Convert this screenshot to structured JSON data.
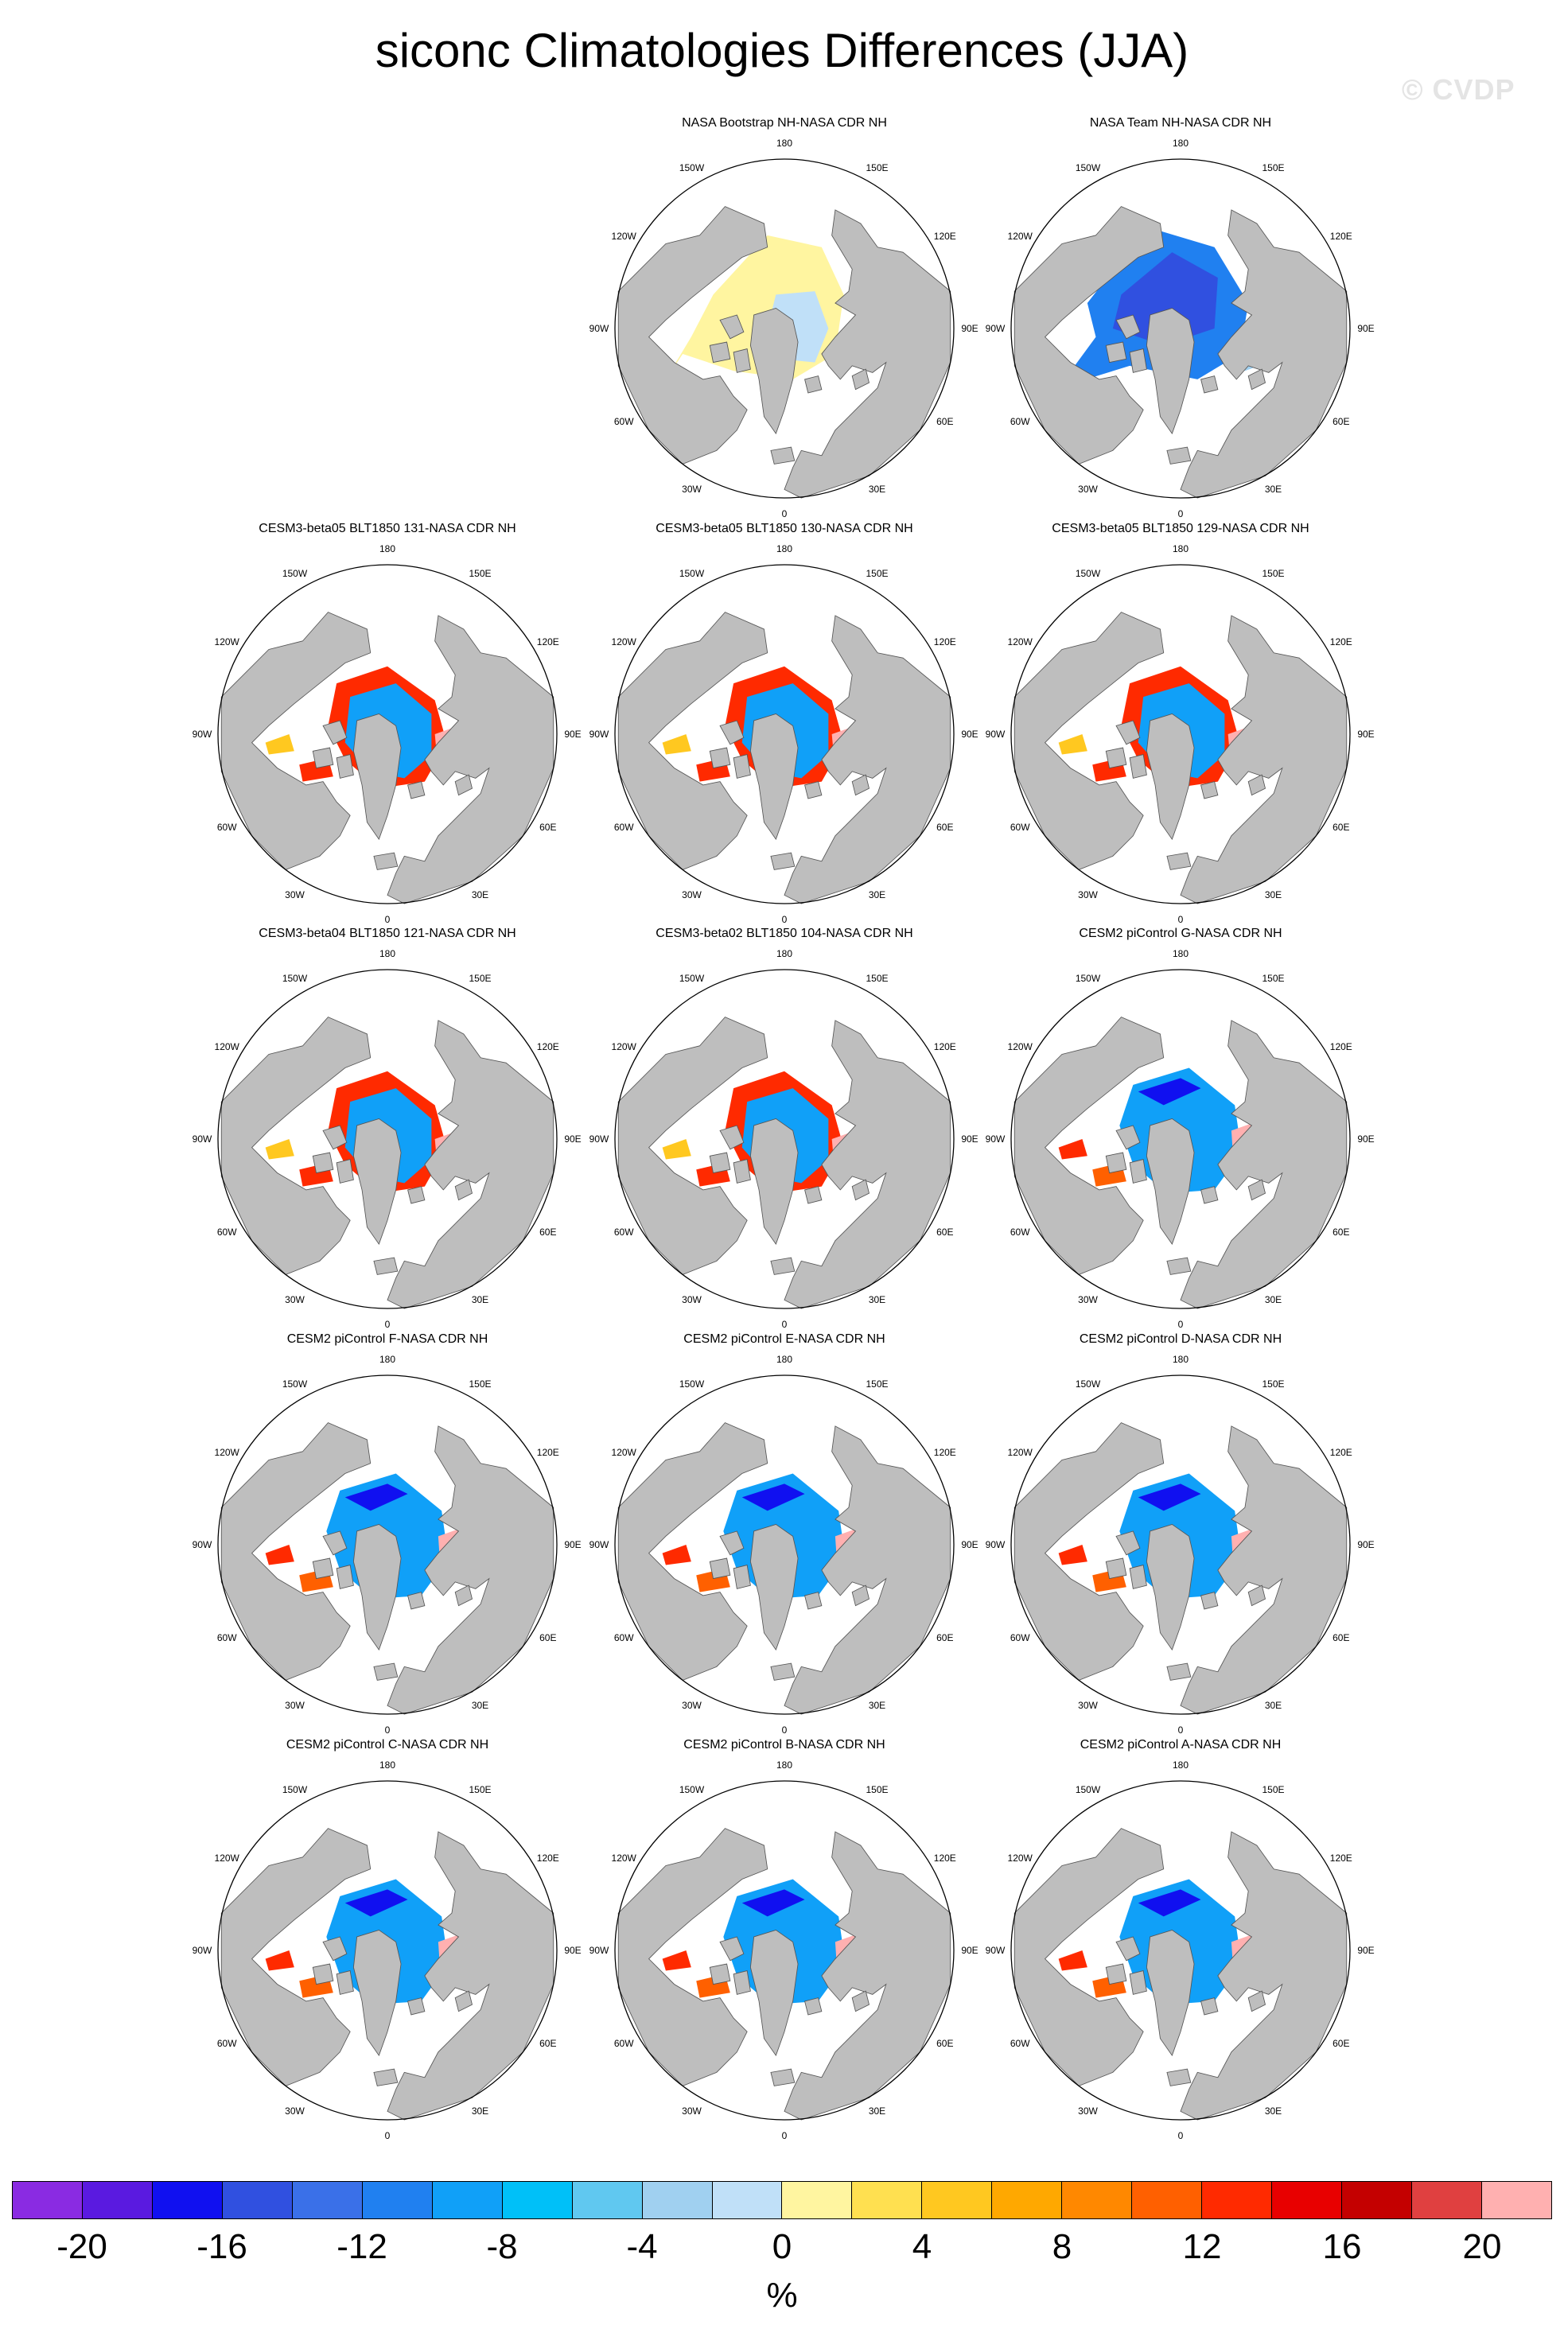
{
  "title": "siconc Climatologies Differences (JJA)",
  "watermark": "© CVDP",
  "lon_labels": [
    "180",
    "150E",
    "120E",
    "90E",
    "60E",
    "30E",
    "0",
    "30W",
    "60W",
    "90W",
    "120W",
    "150W"
  ],
  "panels": [
    {
      "title": "NASA Bootstrap NH-NASA CDR NH",
      "pattern": "bootstrap"
    },
    {
      "title": "NASA Team NH-NASA CDR NH",
      "pattern": "team"
    },
    {
      "title": "CESM3-beta05 BLT1850 131-NASA CDR NH",
      "pattern": "cesm3"
    },
    {
      "title": "CESM3-beta05 BLT1850 130-NASA CDR NH",
      "pattern": "cesm3"
    },
    {
      "title": "CESM3-beta05 BLT1850 129-NASA CDR NH",
      "pattern": "cesm3"
    },
    {
      "title": "CESM3-beta04 BLT1850 121-NASA CDR NH",
      "pattern": "cesm3"
    },
    {
      "title": "CESM3-beta02 BLT1850 104-NASA CDR NH",
      "pattern": "cesm3"
    },
    {
      "title": "CESM2 piControl G-NASA CDR NH",
      "pattern": "cesm2"
    },
    {
      "title": "CESM2 piControl F-NASA CDR NH",
      "pattern": "cesm2"
    },
    {
      "title": "CESM2 piControl E-NASA CDR NH",
      "pattern": "cesm2"
    },
    {
      "title": "CESM2 piControl D-NASA CDR NH",
      "pattern": "cesm2"
    },
    {
      "title": "CESM2 piControl C-NASA CDR NH",
      "pattern": "cesm2"
    },
    {
      "title": "CESM2 piControl B-NASA CDR NH",
      "pattern": "cesm2"
    },
    {
      "title": "CESM2 piControl A-NASA CDR NH",
      "pattern": "cesm2"
    }
  ],
  "colorbar": {
    "colors": [
      "#8a2be2",
      "#5a1ae0",
      "#1010f0",
      "#3050e0",
      "#3a70e8",
      "#2080f0",
      "#10a0f8",
      "#00c0f8",
      "#60c8f0",
      "#a0d0f0",
      "#c0e0f8",
      "#fff5a0",
      "#ffe050",
      "#ffc820",
      "#ffa800",
      "#ff8800",
      "#ff6000",
      "#ff2a00",
      "#e80000",
      "#c40000",
      "#e04040",
      "#ffb0b0"
    ],
    "tick_labels": [
      "-20",
      "-16",
      "-12",
      "-8",
      "-4",
      "0",
      "4",
      "8",
      "12",
      "16",
      "20"
    ],
    "units": "%"
  },
  "colors": {
    "land": "#bebebe",
    "ocean": "#ffffff",
    "outline": "#000000"
  }
}
